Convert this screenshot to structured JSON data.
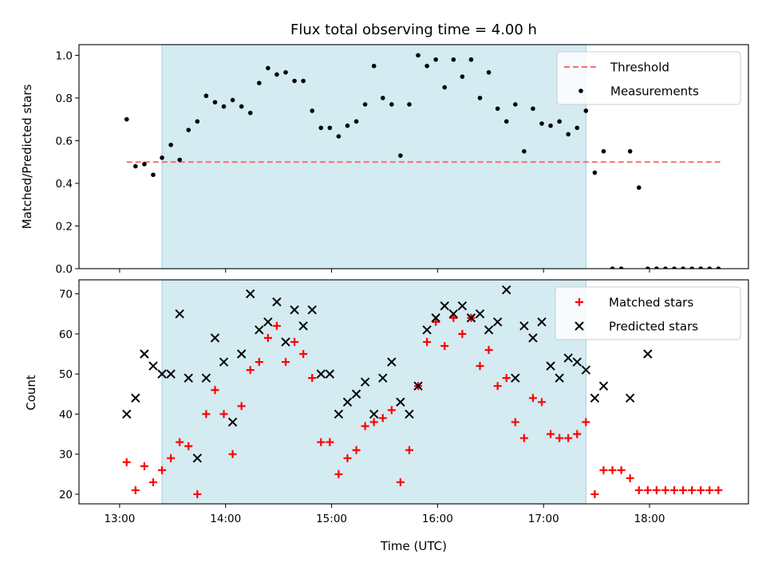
{
  "colors": {
    "shade": "#add8e6",
    "threshold": "#ff6b6b",
    "measurement": "#000000",
    "matched": "#ff0000",
    "predicted": "#000000"
  },
  "chart_data": [
    {
      "type": "scatter",
      "title": "Flux total observing time = 4.00 h",
      "xlabel": "",
      "ylabel": "Matched/Predicted stars",
      "ylim": [
        0,
        1.05
      ],
      "yticks": [
        "0.0",
        "0.2",
        "0.4",
        "0.6",
        "0.8",
        "1.0"
      ],
      "ytick_values": [
        0,
        0.2,
        0.4,
        0.6,
        0.8,
        1.0
      ],
      "xlim": [
        "12:37",
        "18:56"
      ],
      "shaded_span": [
        "13:24",
        "17:24"
      ],
      "legend": {
        "placement": "top-right",
        "entries": [
          "Threshold",
          "Measurements"
        ]
      },
      "threshold": {
        "name": "Threshold",
        "x": [
          "13:04",
          "18:40"
        ],
        "y": 0.5
      },
      "series": [
        {
          "name": "Measurements",
          "x": [
            "13:04",
            "13:09",
            "13:14",
            "13:19",
            "13:24",
            "13:29",
            "13:34",
            "13:39",
            "13:44",
            "13:49",
            "13:54",
            "13:59",
            "14:04",
            "14:09",
            "14:14",
            "14:19",
            "14:24",
            "14:29",
            "14:34",
            "14:39",
            "14:44",
            "14:49",
            "14:54",
            "14:59",
            "15:04",
            "15:09",
            "15:14",
            "15:19",
            "15:24",
            "15:29",
            "15:34",
            "15:39",
            "15:44",
            "15:49",
            "15:54",
            "15:59",
            "16:04",
            "16:09",
            "16:14",
            "16:19",
            "16:24",
            "16:29",
            "16:34",
            "16:39",
            "16:44",
            "16:49",
            "16:54",
            "16:59",
            "17:04",
            "17:09",
            "17:14",
            "17:19",
            "17:24",
            "17:29",
            "17:34",
            "17:39",
            "17:44",
            "17:49",
            "17:54",
            "17:59",
            "18:04",
            "18:09",
            "18:14",
            "18:19",
            "18:24",
            "18:29",
            "18:34",
            "18:39"
          ],
          "y": [
            0.7,
            0.48,
            0.49,
            0.44,
            0.52,
            0.58,
            0.51,
            0.65,
            0.69,
            0.81,
            0.78,
            0.76,
            0.79,
            0.76,
            0.73,
            0.87,
            0.94,
            0.91,
            0.92,
            0.88,
            0.88,
            0.74,
            0.66,
            0.66,
            0.62,
            0.67,
            0.69,
            0.77,
            0.95,
            0.8,
            0.77,
            0.53,
            0.77,
            1.0,
            0.95,
            0.98,
            0.85,
            0.98,
            0.9,
            0.98,
            0.8,
            0.92,
            0.75,
            0.69,
            0.77,
            0.55,
            0.75,
            0.68,
            0.67,
            0.69,
            0.63,
            0.66,
            0.74,
            0.45,
            0.55,
            0,
            0,
            0.55,
            0.38,
            0,
            0,
            0,
            0,
            0,
            0,
            0,
            0,
            0
          ]
        }
      ]
    },
    {
      "type": "scatter",
      "title": "",
      "xlabel": "Time (UTC)",
      "ylabel": "Count",
      "ylim": [
        17.6,
        73.5
      ],
      "yticks": [
        "20",
        "30",
        "40",
        "50",
        "60",
        "70"
      ],
      "ytick_values": [
        20,
        30,
        40,
        50,
        60,
        70
      ],
      "xticks": [
        "13:00",
        "14:00",
        "15:00",
        "16:00",
        "17:00",
        "18:00"
      ],
      "xlim": [
        "12:37",
        "18:56"
      ],
      "shaded_span": [
        "13:24",
        "17:24"
      ],
      "legend": {
        "placement": "top-right",
        "entries": [
          "Matched stars",
          "Predicted stars"
        ]
      },
      "series": [
        {
          "name": "Matched stars",
          "x": [
            "13:04",
            "13:09",
            "13:14",
            "13:19",
            "13:24",
            "13:29",
            "13:34",
            "13:39",
            "13:44",
            "13:49",
            "13:54",
            "13:59",
            "14:04",
            "14:09",
            "14:14",
            "14:19",
            "14:24",
            "14:29",
            "14:34",
            "14:39",
            "14:44",
            "14:49",
            "14:54",
            "14:59",
            "15:04",
            "15:09",
            "15:14",
            "15:19",
            "15:24",
            "15:29",
            "15:34",
            "15:39",
            "15:44",
            "15:49",
            "15:54",
            "15:59",
            "16:04",
            "16:09",
            "16:14",
            "16:19",
            "16:24",
            "16:29",
            "16:34",
            "16:39",
            "16:44",
            "16:49",
            "16:54",
            "16:59",
            "17:04",
            "17:09",
            "17:14",
            "17:19",
            "17:24",
            "17:29",
            "17:34",
            "17:39",
            "17:44",
            "17:49",
            "17:54",
            "17:59",
            "18:04",
            "18:09",
            "18:14",
            "18:19",
            "18:24",
            "18:29",
            "18:34",
            "18:39"
          ],
          "y": [
            28,
            21,
            27,
            23,
            26,
            29,
            33,
            32,
            20,
            40,
            46,
            40,
            30,
            42,
            51,
            53,
            59,
            62,
            53,
            58,
            55,
            49,
            33,
            33,
            25,
            29,
            31,
            37,
            38,
            39,
            41,
            23,
            31,
            47,
            58,
            63,
            57,
            64,
            60,
            64,
            52,
            56,
            47,
            49,
            38,
            34,
            44,
            43,
            35,
            34,
            34,
            35,
            38,
            20,
            26,
            26,
            26,
            24,
            21,
            21,
            21,
            21,
            21,
            21,
            21,
            21,
            21,
            21
          ]
        },
        {
          "name": "Predicted stars",
          "x": [
            "13:04",
            "13:09",
            "13:14",
            "13:19",
            "13:24",
            "13:29",
            "13:34",
            "13:39",
            "13:44",
            "13:49",
            "13:54",
            "13:59",
            "14:04",
            "14:09",
            "14:14",
            "14:19",
            "14:24",
            "14:29",
            "14:34",
            "14:39",
            "14:44",
            "14:49",
            "14:54",
            "14:59",
            "15:04",
            "15:09",
            "15:14",
            "15:19",
            "15:24",
            "15:29",
            "15:34",
            "15:39",
            "15:44",
            "15:49",
            "15:54",
            "15:59",
            "16:04",
            "16:09",
            "16:14",
            "16:19",
            "16:24",
            "16:29",
            "16:34",
            "16:39",
            "16:44",
            "16:49",
            "16:54",
            "16:59",
            "17:04",
            "17:09",
            "17:14",
            "17:19",
            "17:24",
            "17:29",
            "17:34",
            "17:49",
            "17:59"
          ],
          "y": [
            40,
            44,
            55,
            52,
            50,
            50,
            65,
            49,
            29,
            49,
            59,
            53,
            38,
            55,
            70,
            61,
            63,
            68,
            58,
            66,
            62,
            66,
            50,
            50,
            40,
            43,
            45,
            48,
            40,
            49,
            53,
            43,
            40,
            47,
            61,
            64,
            67,
            65,
            67,
            64,
            65,
            61,
            63,
            71,
            49,
            62,
            59,
            63,
            52,
            49,
            54,
            53,
            51,
            44,
            47,
            44,
            55
          ]
        }
      ]
    }
  ]
}
